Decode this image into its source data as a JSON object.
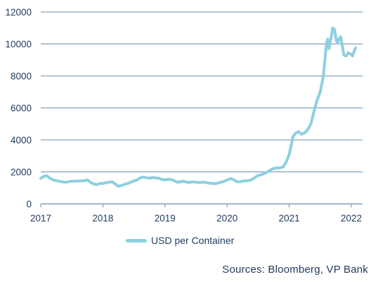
{
  "chart_data": {
    "type": "line",
    "xlabel": "",
    "ylabel": "",
    "xlim": [
      2017,
      2022.08
    ],
    "ylim": [
      0,
      12000
    ],
    "x_ticks": [
      "2017",
      "2018",
      "2019",
      "2020",
      "2021",
      "2022"
    ],
    "y_ticks": [
      "0",
      "2000",
      "4000",
      "6000",
      "8000",
      "10000",
      "12000"
    ],
    "grid": "horizontal",
    "legend_position": "bottom",
    "series": [
      {
        "name": "USD per Container",
        "color": "#8dcfe0",
        "points": [
          [
            2017.0,
            1600
          ],
          [
            2017.05,
            1720
          ],
          [
            2017.1,
            1750
          ],
          [
            2017.15,
            1600
          ],
          [
            2017.2,
            1500
          ],
          [
            2017.3,
            1400
          ],
          [
            2017.4,
            1350
          ],
          [
            2017.5,
            1420
          ],
          [
            2017.6,
            1430
          ],
          [
            2017.7,
            1450
          ],
          [
            2017.75,
            1500
          ],
          [
            2017.8,
            1350
          ],
          [
            2017.85,
            1250
          ],
          [
            2017.9,
            1200
          ],
          [
            2017.95,
            1280
          ],
          [
            2018.0,
            1270
          ],
          [
            2018.05,
            1330
          ],
          [
            2018.1,
            1350
          ],
          [
            2018.15,
            1380
          ],
          [
            2018.2,
            1240
          ],
          [
            2018.25,
            1100
          ],
          [
            2018.3,
            1150
          ],
          [
            2018.35,
            1220
          ],
          [
            2018.4,
            1280
          ],
          [
            2018.45,
            1350
          ],
          [
            2018.5,
            1430
          ],
          [
            2018.55,
            1500
          ],
          [
            2018.6,
            1620
          ],
          [
            2018.65,
            1680
          ],
          [
            2018.7,
            1640
          ],
          [
            2018.75,
            1600
          ],
          [
            2018.8,
            1650
          ],
          [
            2018.85,
            1620
          ],
          [
            2018.9,
            1600
          ],
          [
            2018.95,
            1520
          ],
          [
            2019.0,
            1500
          ],
          [
            2019.05,
            1540
          ],
          [
            2019.1,
            1520
          ],
          [
            2019.15,
            1450
          ],
          [
            2019.2,
            1350
          ],
          [
            2019.25,
            1380
          ],
          [
            2019.3,
            1420
          ],
          [
            2019.35,
            1360
          ],
          [
            2019.4,
            1340
          ],
          [
            2019.45,
            1380
          ],
          [
            2019.5,
            1360
          ],
          [
            2019.55,
            1330
          ],
          [
            2019.6,
            1360
          ],
          [
            2019.65,
            1340
          ],
          [
            2019.7,
            1300
          ],
          [
            2019.75,
            1280
          ],
          [
            2019.8,
            1260
          ],
          [
            2019.85,
            1300
          ],
          [
            2019.9,
            1350
          ],
          [
            2019.95,
            1400
          ],
          [
            2020.0,
            1500
          ],
          [
            2020.05,
            1580
          ],
          [
            2020.1,
            1520
          ],
          [
            2020.15,
            1400
          ],
          [
            2020.2,
            1370
          ],
          [
            2020.25,
            1420
          ],
          [
            2020.3,
            1440
          ],
          [
            2020.35,
            1450
          ],
          [
            2020.4,
            1520
          ],
          [
            2020.45,
            1650
          ],
          [
            2020.5,
            1780
          ],
          [
            2020.55,
            1820
          ],
          [
            2020.6,
            1900
          ],
          [
            2020.65,
            2000
          ],
          [
            2020.7,
            2120
          ],
          [
            2020.75,
            2220
          ],
          [
            2020.8,
            2240
          ],
          [
            2020.85,
            2250
          ],
          [
            2020.9,
            2300
          ],
          [
            2020.95,
            2600
          ],
          [
            2021.0,
            3100
          ],
          [
            2021.04,
            3800
          ],
          [
            2021.06,
            4200
          ],
          [
            2021.1,
            4400
          ],
          [
            2021.15,
            4520
          ],
          [
            2021.2,
            4350
          ],
          [
            2021.25,
            4450
          ],
          [
            2021.3,
            4650
          ],
          [
            2021.35,
            5000
          ],
          [
            2021.4,
            5800
          ],
          [
            2021.45,
            6500
          ],
          [
            2021.5,
            7000
          ],
          [
            2021.55,
            8000
          ],
          [
            2021.58,
            9200
          ],
          [
            2021.6,
            10000
          ],
          [
            2021.62,
            10300
          ],
          [
            2021.64,
            9700
          ],
          [
            2021.66,
            10100
          ],
          [
            2021.68,
            10500
          ],
          [
            2021.7,
            11000
          ],
          [
            2021.73,
            10900
          ],
          [
            2021.76,
            10200
          ],
          [
            2021.78,
            10050
          ],
          [
            2021.8,
            10300
          ],
          [
            2021.83,
            10450
          ],
          [
            2021.85,
            10000
          ],
          [
            2021.88,
            9300
          ],
          [
            2021.92,
            9250
          ],
          [
            2021.95,
            9450
          ],
          [
            2022.0,
            9350
          ],
          [
            2022.02,
            9250
          ],
          [
            2022.05,
            9600
          ],
          [
            2022.07,
            9750
          ]
        ]
      }
    ]
  },
  "legend": {
    "label": "USD per Container"
  },
  "source": "Sources: Bloomberg, VP Bank"
}
